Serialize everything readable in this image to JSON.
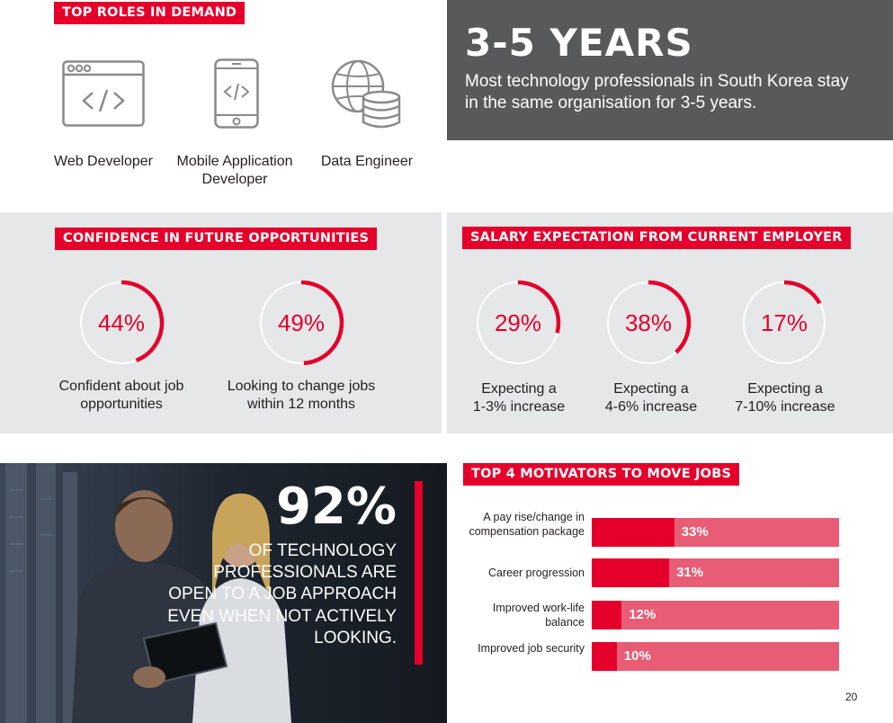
{
  "roles": {
    "header": "TOP ROLES IN DEMAND",
    "items": [
      {
        "name": "Web Developer",
        "icon": "code-window-icon"
      },
      {
        "name": "Mobile Application Developer",
        "icon": "mobile-code-icon"
      },
      {
        "name": "Data Engineer",
        "icon": "globe-database-icon"
      }
    ]
  },
  "tenure": {
    "headline": "3-5 YEARS",
    "text": "Most technology professionals in South Korea stay in the same organisation for 3-5 years."
  },
  "confidence": {
    "header": "CONFIDENCE IN FUTURE OPPORTUNITIES",
    "stats": [
      {
        "value": "44%",
        "fraction": 0.44,
        "caption": "Confident about job opportunities"
      },
      {
        "value": "49%",
        "fraction": 0.49,
        "caption": "Looking to change jobs within 12 months"
      }
    ]
  },
  "salary": {
    "header": "SALARY EXPECTATION FROM CURRENT EMPLOYER",
    "stats": [
      {
        "value": "29%",
        "fraction": 0.29,
        "caption_1": "Expecting a",
        "caption_2": "1-3% increase"
      },
      {
        "value": "38%",
        "fraction": 0.38,
        "caption_1": "Expecting a",
        "caption_2": "4-6% increase"
      },
      {
        "value": "17%",
        "fraction": 0.17,
        "caption_1": "Expecting a",
        "caption_2": "7-10% increase"
      }
    ]
  },
  "open_to_approach": {
    "stat": "92%",
    "text": "OF TECHNOLOGY PROFESSIONALS ARE OPEN TO A JOB APPROACH EVEN WHEN NOT ACTIVELY LOOKING."
  },
  "motivators": {
    "header": "TOP 4 MOTIVATORS TO MOVE JOBS",
    "items": [
      {
        "label": "A pay rise/change in compensation package",
        "value": "33%",
        "percent": 33
      },
      {
        "label": "Career progression",
        "value": "31%",
        "percent": 31
      },
      {
        "label": "Improved work-life balance",
        "value": "12%",
        "percent": 12
      },
      {
        "label": "Improved job security",
        "value": "10%",
        "percent": 10
      }
    ]
  },
  "colors": {
    "accent": "#e4002b",
    "bar_track": "#e85d75",
    "dark_box": "#58595b",
    "panel": "#e6e7e8"
  },
  "page_number": "20"
}
